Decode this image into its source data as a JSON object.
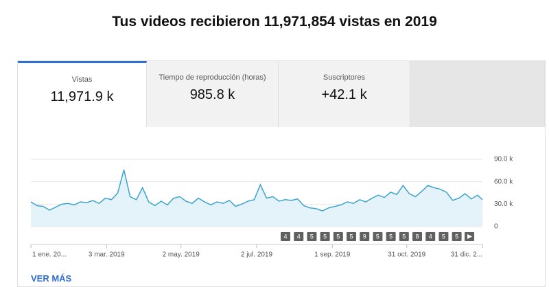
{
  "header": {
    "title": "Tus videos recibieron 11,971,854 vistas en 2019"
  },
  "tabs": [
    {
      "label": "Vistas",
      "value": "11,971.9 k"
    },
    {
      "label": "Tiempo de reproducción (horas)",
      "value": "985.8 k"
    },
    {
      "label": "Suscriptores",
      "value": "+42.1 k"
    }
  ],
  "chart_data": {
    "type": "line",
    "color": "#3ba3cf",
    "fill": "#e4f2f9",
    "x": [
      0,
      5,
      10,
      15,
      20,
      25,
      30,
      35,
      40,
      45,
      50,
      55,
      60,
      65,
      70,
      75,
      80,
      85,
      90,
      95,
      100,
      105,
      110,
      115,
      120,
      125,
      130,
      135,
      140,
      145,
      150,
      155,
      160,
      165,
      170,
      175,
      180,
      185,
      190,
      195,
      200,
      205,
      210,
      215,
      220,
      225,
      230,
      235,
      240,
      245,
      250,
      255,
      260,
      265,
      270,
      275,
      280,
      285,
      290,
      295,
      300,
      305,
      310,
      315,
      320,
      325,
      330,
      335,
      340,
      345,
      350,
      355,
      360,
      364
    ],
    "values": [
      33000,
      28000,
      27000,
      22000,
      26000,
      30000,
      31000,
      29000,
      33000,
      32000,
      35000,
      31000,
      38000,
      36000,
      45000,
      76000,
      40000,
      36000,
      52000,
      33000,
      28000,
      34000,
      29000,
      38000,
      40000,
      34000,
      31000,
      38000,
      33000,
      29000,
      33000,
      31000,
      35000,
      27000,
      30000,
      34000,
      36000,
      56000,
      38000,
      40000,
      34000,
      36000,
      35000,
      37000,
      28000,
      25000,
      24000,
      21000,
      25000,
      27000,
      29000,
      33000,
      31000,
      36000,
      33000,
      38000,
      42000,
      39000,
      46000,
      43000,
      55000,
      44000,
      40000,
      47000,
      55000,
      52000,
      50000,
      46000,
      35000,
      38000,
      44000,
      37000,
      42000,
      36000
    ],
    "xlim": [
      0,
      364
    ],
    "xticks": [
      {
        "value": 0,
        "label": "1 ene. 20..."
      },
      {
        "value": 61,
        "label": "3 mar. 2019"
      },
      {
        "value": 121,
        "label": "2 may. 2019"
      },
      {
        "value": 182,
        "label": "2 jul. 2019"
      },
      {
        "value": 243,
        "label": "1 sep. 2019"
      },
      {
        "value": 303,
        "label": "31 oct. 2019"
      },
      {
        "value": 364,
        "label": "31 dic. 2..."
      }
    ],
    "ylim": [
      0,
      90000
    ],
    "yticks": [
      0,
      {
        "value": 30000,
        "label": "30.0 k"
      },
      {
        "value": 60000,
        "label": "60.0 k"
      },
      {
        "value": 90000,
        "label": "90.0 k"
      }
    ],
    "grid": true,
    "event_counts": [
      4,
      4,
      5,
      5,
      5,
      5,
      9,
      5,
      5,
      5,
      8,
      4,
      5,
      5
    ]
  },
  "footer": {
    "link": "VER MÁS"
  }
}
